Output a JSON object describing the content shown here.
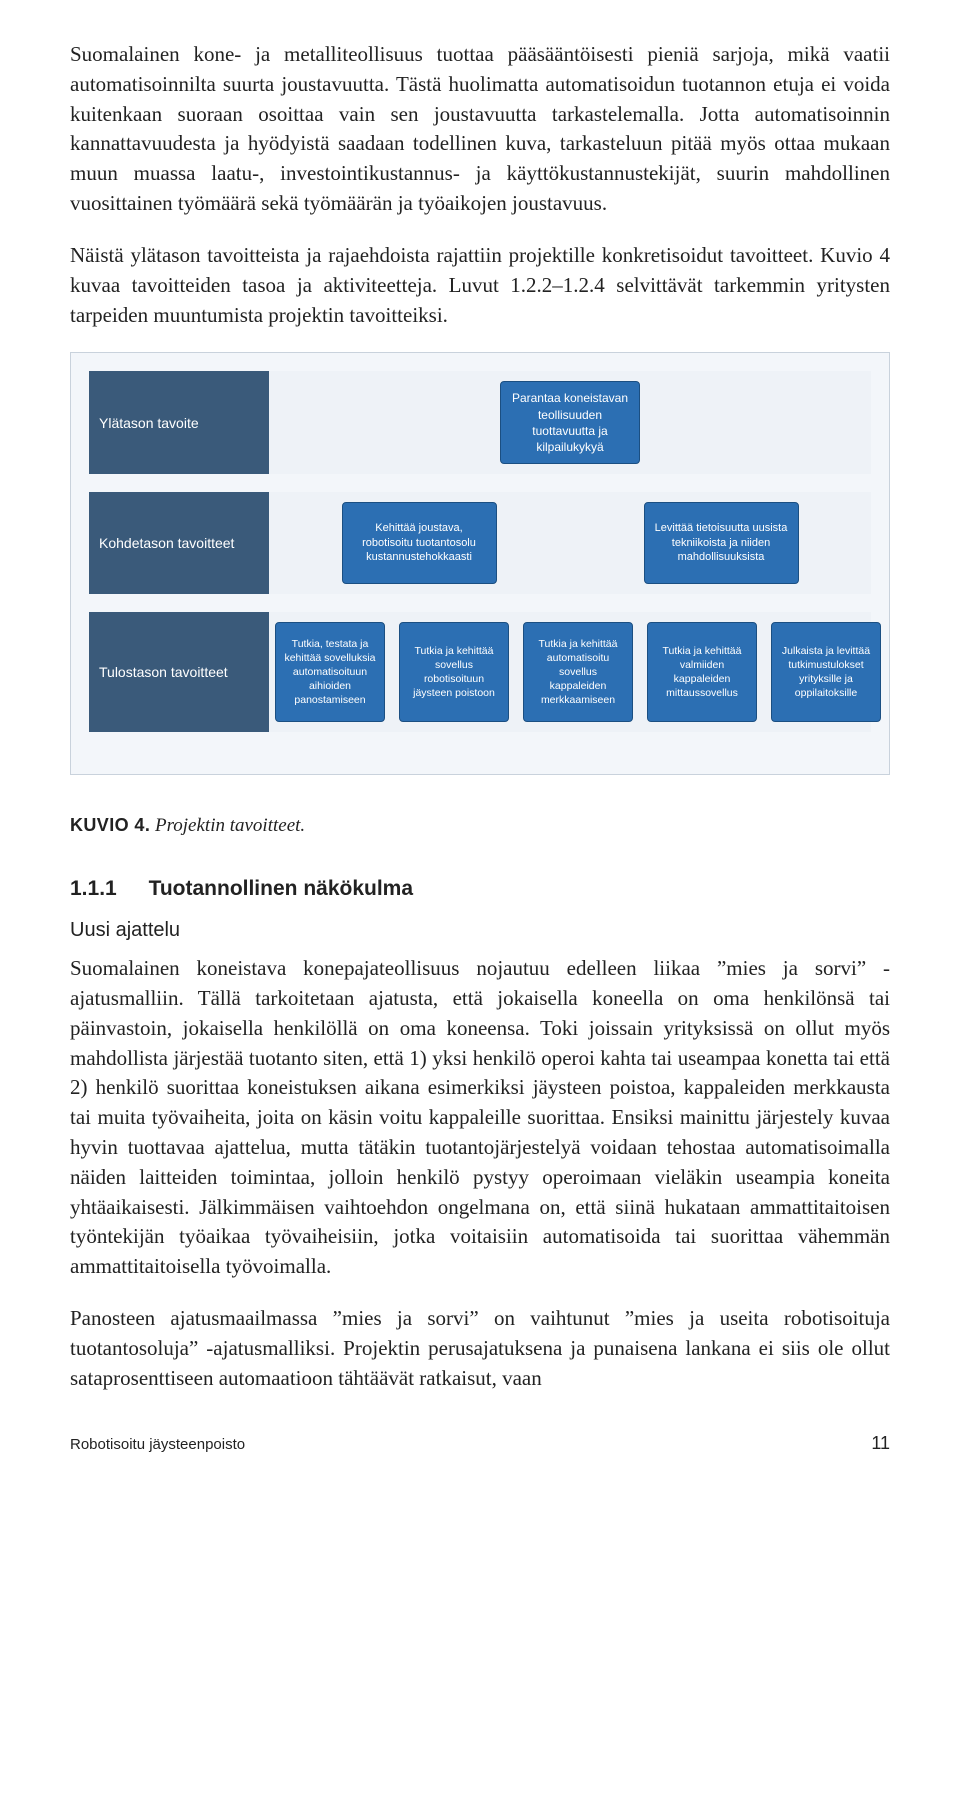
{
  "paragraphs": {
    "p1": "Suomalainen kone- ja metalliteollisuus tuottaa pääsääntöisesti pieniä sarjoja, mikä vaatii automatisoinnilta suurta joustavuutta. Tästä huolimatta automatisoidun tuotannon etuja ei voida kuitenkaan suoraan osoittaa vain sen joustavuutta tarkastelemalla. Jotta automatisoinnin kannattavuudesta ja hyödyistä saadaan todellinen kuva, tarkasteluun pitää myös ottaa mukaan muun muassa laatu-, investointikustannus- ja käyttökustannustekijät, suurin mahdollinen vuosittainen työmäärä sekä työmäärän ja työaikojen joustavuus.",
    "p2": "Näistä ylätason tavoitteista ja rajaehdoista rajattiin projektille konkretisoidut tavoitteet. Kuvio 4 kuvaa tavoitteiden tasoa ja aktiviteetteja. Luvut 1.2.2–1.2.4 selvittävät tarkemmin yritysten tarpeiden muuntumista projektin tavoitteiksi.",
    "p3": "Suomalainen koneistava konepajateollisuus nojautuu edelleen liikaa ”mies ja sorvi” -ajatusmalliin. Tällä tarkoitetaan ajatusta, että jokaisella koneella on oma henkilönsä tai päinvastoin, jokaisella henkilöllä on oma koneensa. Toki joissain yrityksissä on ollut myös mahdollista järjestää tuotanto siten, että 1) yksi henkilö operoi kahta tai useampaa konetta tai että 2) henkilö suorittaa koneistuksen aikana esimerkiksi jäysteen poistoa, kappaleiden merkkausta tai muita työvaiheita, joita on käsin voitu kappaleille suorittaa. Ensiksi mainittu järjestely kuvaa hyvin tuottavaa ajattelua, mutta tätäkin tuotantojärjestelyä voidaan tehostaa automatisoimalla näiden laitteiden toimintaa, jolloin henkilö pystyy operoimaan vieläkin useampia koneita yhtäaikaisesti. Jälkimmäisen vaihtoehdon ongelmana on, että siinä hukataan ammattitaitoisen työntekijän työaikaa työvaiheisiin, jotka voitaisiin automatisoida tai suorittaa vähemmän ammattitaitoisella työvoimalla.",
    "p4": "Panosteen ajatusmaailmassa ”mies ja sorvi” on vaihtunut ”mies ja useita robotisoituja tuotantosoluja” -ajatusmalliksi. Projektin perusajatuksena ja punaisena lankana ei siis ole ollut sataprosenttiseen automaatioon tähtäävät ratkaisut, vaan"
  },
  "figure": {
    "caption_label": "KUVIO 4.",
    "caption_title": "Projektin tavoitteet.",
    "row_labels": [
      "Ylätason tavoite",
      "Kohdetason tavoitteet",
      "Tulostason tavoitteet"
    ],
    "top_node": "Parantaa koneistavan teollisuuden tuottavuutta ja kilpailukykyä",
    "mid_nodes": [
      "Kehittää joustava, robotisoitu tuotantosolu kustannustehokkaasti",
      "Levittää tietoisuutta uusista tekniikoista ja niiden mahdollisuuksista"
    ],
    "low_nodes": [
      "Tutkia, testata ja kehittää sovelluksia automatisoituun aihioiden panostamiseen",
      "Tutkia ja kehittää sovellus robotisoituun jäysteen poistoon",
      "Tutkia ja kehittää automatisoitu sovellus kappaleiden merkkaamiseen",
      "Tutkia ja kehittää valmiiden kappaleiden mittaussovellus",
      "Julkaista ja levittää tutkimustulokset yrityksille ja oppilaitoksille"
    ],
    "colors": {
      "node_bg": "#2c6fb3",
      "node_border": "#1b4f82",
      "node_text": "#ffffff",
      "label_bg": "#3a5a7a",
      "label_text": "#ffffff",
      "panel_bg": "#eef2f7",
      "frame_border": "#c9d2dc"
    }
  },
  "section": {
    "number": "1.1.1",
    "title": "Tuotannollinen näkökulma",
    "subheading": "Uusi ajattelu"
  },
  "footer": {
    "left": "Robotisoitu jäysteenpoisto",
    "page": "11"
  }
}
